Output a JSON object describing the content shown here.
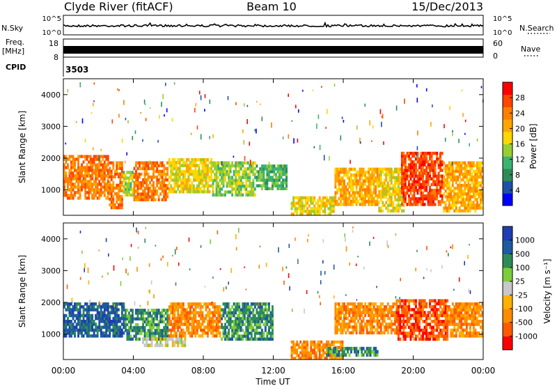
{
  "header": {
    "station": "Clyde River (fitACF)",
    "beam": "Beam 10",
    "date": "15/Dec/2013"
  },
  "params": {
    "nsky_label": "N.Sky",
    "nsky_ticks": [
      "10^5",
      "10^0"
    ],
    "nsearch_label": "N.Search",
    "nsearch_ticks": [
      "10^5",
      "10^0"
    ],
    "freq_label": "Freq.",
    "freq_unit": "[MHz]",
    "freq_ticks": [
      "18",
      "8"
    ],
    "nave_label": "Nave",
    "nave_ticks": [
      "60",
      "0"
    ],
    "cpid_label": "CPID",
    "cpid_value": "3503"
  },
  "colors": {
    "power": [
      "#0000ff",
      "#1e50a8",
      "#2e8b57",
      "#3cb371",
      "#9acd32",
      "#ffd700",
      "#ffa500",
      "#ff7f00",
      "#ff4500",
      "#ff0000"
    ],
    "velocity": [
      "#ff0000",
      "#ff5a00",
      "#ff8c00",
      "#ffb000",
      "#c8c8c8",
      "#7dcd3a",
      "#2e8b57",
      "#1e5aa0",
      "#1e3cb4"
    ]
  },
  "chart_data": [
    {
      "type": "heatmap",
      "panel": "power",
      "ylabel": "Slant Range [km]",
      "xlim": [
        0,
        24
      ],
      "ylim": [
        200,
        4500
      ],
      "yticks": [
        "1000",
        "2000",
        "3000",
        "4000"
      ],
      "colorbar": {
        "label": "Power [dB]",
        "ticks": [
          "4",
          "8",
          "12",
          "16",
          "20",
          "24",
          "28"
        ],
        "range": [
          0,
          32
        ]
      },
      "blobs": [
        {
          "t0": 0.0,
          "t1": 2.6,
          "r0": 700,
          "r1": 2100,
          "value": 24
        },
        {
          "t0": 2.6,
          "t1": 3.4,
          "r0": 400,
          "r1": 1900,
          "value": 26
        },
        {
          "t0": 3.4,
          "t1": 4.0,
          "r0": 800,
          "r1": 1600,
          "value": 14
        },
        {
          "t0": 4.0,
          "t1": 6.0,
          "r0": 650,
          "r1": 1900,
          "value": 25
        },
        {
          "t0": 6.0,
          "t1": 8.5,
          "r0": 900,
          "r1": 2000,
          "value": 16
        },
        {
          "t0": 8.5,
          "t1": 11.0,
          "r0": 800,
          "r1": 1900,
          "value": 15
        },
        {
          "t0": 11.0,
          "t1": 12.8,
          "r0": 1000,
          "r1": 1800,
          "value": 12
        },
        {
          "t0": 13.0,
          "t1": 15.5,
          "r0": 200,
          "r1": 800,
          "value": 18
        },
        {
          "t0": 15.5,
          "t1": 18.0,
          "r0": 500,
          "r1": 1700,
          "value": 22
        },
        {
          "t0": 18.0,
          "t1": 19.5,
          "r0": 300,
          "r1": 1700,
          "value": 17
        },
        {
          "t0": 19.3,
          "t1": 21.7,
          "r0": 500,
          "r1": 2200,
          "value": 27
        },
        {
          "t0": 21.7,
          "t1": 24.0,
          "r0": 300,
          "r1": 1900,
          "value": 23
        }
      ]
    },
    {
      "type": "heatmap",
      "panel": "velocity",
      "ylabel": "Slant Range [km]",
      "xlabel": "Time UT",
      "xlim": [
        0,
        24
      ],
      "ylim": [
        200,
        4500
      ],
      "xticks": [
        "00:00",
        "04:00",
        "08:00",
        "12:00",
        "16:00",
        "20:00",
        "00:00"
      ],
      "yticks": [
        "1000",
        "2000",
        "3000",
        "4000"
      ],
      "colorbar": {
        "label": "Velocity [m s⁻¹]",
        "ticks": [
          "-1000",
          "-500",
          "-100",
          "-25",
          "25",
          "100",
          "500",
          "1000"
        ]
      },
      "blobs": [
        {
          "t0": 0.0,
          "t1": 3.5,
          "r0": 900,
          "r1": 2000,
          "value": 600
        },
        {
          "t0": 3.5,
          "t1": 6.0,
          "r0": 800,
          "r1": 1800,
          "value": 200
        },
        {
          "t0": 4.5,
          "t1": 7.0,
          "r0": 600,
          "r1": 900,
          "value": 0
        },
        {
          "t0": 6.0,
          "t1": 9.0,
          "r0": 900,
          "r1": 2000,
          "value": -150
        },
        {
          "t0": 9.0,
          "t1": 12.0,
          "r0": 800,
          "r1": 2000,
          "value": 150
        },
        {
          "t0": 13.0,
          "t1": 16.0,
          "r0": 200,
          "r1": 800,
          "value": -150
        },
        {
          "t0": 15.0,
          "t1": 18.0,
          "r0": 300,
          "r1": 600,
          "value": 200
        },
        {
          "t0": 15.5,
          "t1": 19.0,
          "r0": 1000,
          "r1": 2000,
          "value": -300
        },
        {
          "t0": 19.0,
          "t1": 22.0,
          "r0": 800,
          "r1": 2100,
          "value": -550
        },
        {
          "t0": 22.0,
          "t1": 24.0,
          "r0": 900,
          "r1": 2000,
          "value": -350
        }
      ]
    }
  ]
}
